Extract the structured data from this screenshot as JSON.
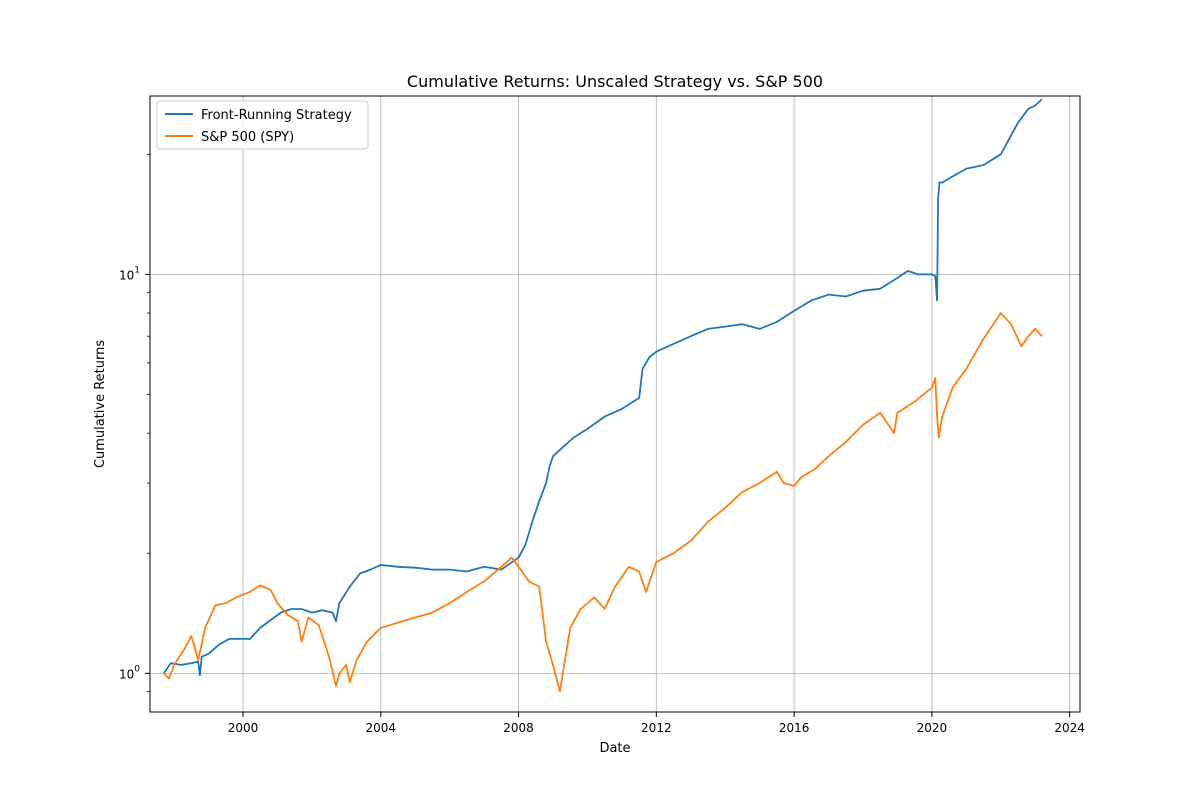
{
  "chart_data": {
    "type": "line",
    "title": "Cumulative Returns: Unscaled Strategy vs. S&P 500",
    "xlabel": "Date",
    "ylabel": "Cumulative Returns",
    "yscale": "log",
    "xlim": [
      1997.3,
      2024.3
    ],
    "ylim": [
      0.8,
      28
    ],
    "grid": true,
    "legend_position": "top-left",
    "x_ticks": [
      {
        "value": 2000,
        "label": "2000"
      },
      {
        "value": 2004,
        "label": "2004"
      },
      {
        "value": 2008,
        "label": "2008"
      },
      {
        "value": 2012,
        "label": "2012"
      },
      {
        "value": 2016,
        "label": "2016"
      },
      {
        "value": 2020,
        "label": "2020"
      },
      {
        "value": 2024,
        "label": "2024"
      }
    ],
    "y_ticks": [
      {
        "value": 1,
        "base": "10",
        "exp": "0"
      },
      {
        "value": 10,
        "base": "10",
        "exp": "1"
      }
    ],
    "y_minor_ticks": [
      0.9,
      2,
      3,
      4,
      5,
      6,
      7,
      8,
      9,
      20
    ],
    "series": [
      {
        "name": "Front-Running Strategy",
        "color": "#1f77b4",
        "x": [
          1997.7,
          1997.9,
          1998.2,
          1998.5,
          1998.7,
          1998.75,
          1998.8,
          1999.0,
          1999.3,
          1999.6,
          1999.9,
          2000.2,
          2000.5,
          2000.8,
          2001.1,
          2001.4,
          2001.7,
          2002.0,
          2002.3,
          2002.6,
          2002.7,
          2002.8,
          2003.1,
          2003.4,
          2003.7,
          2004.0,
          2004.5,
          2005.0,
          2005.5,
          2006.0,
          2006.5,
          2007.0,
          2007.5,
          2008.0,
          2008.2,
          2008.4,
          2008.6,
          2008.8,
          2008.9,
          2009.0,
          2009.3,
          2009.6,
          2010.0,
          2010.5,
          2011.0,
          2011.5,
          2011.6,
          2011.8,
          2012.0,
          2012.5,
          2013.0,
          2013.5,
          2014.0,
          2014.5,
          2015.0,
          2015.5,
          2016.0,
          2016.5,
          2017.0,
          2017.5,
          2018.0,
          2018.5,
          2019.0,
          2019.3,
          2019.6,
          2020.0,
          2020.1,
          2020.15,
          2020.18,
          2020.22,
          2020.3,
          2020.6,
          2021.0,
          2021.5,
          2022.0,
          2022.5,
          2022.8,
          2023.0,
          2023.2
        ],
        "values": [
          1.0,
          1.06,
          1.05,
          1.06,
          1.07,
          0.99,
          1.1,
          1.12,
          1.18,
          1.22,
          1.22,
          1.22,
          1.3,
          1.36,
          1.42,
          1.45,
          1.45,
          1.42,
          1.44,
          1.42,
          1.35,
          1.5,
          1.65,
          1.78,
          1.82,
          1.87,
          1.85,
          1.84,
          1.82,
          1.82,
          1.8,
          1.85,
          1.82,
          1.95,
          2.1,
          2.4,
          2.7,
          3.0,
          3.3,
          3.5,
          3.7,
          3.9,
          4.1,
          4.4,
          4.6,
          4.9,
          5.8,
          6.2,
          6.4,
          6.7,
          7.0,
          7.3,
          7.4,
          7.5,
          7.3,
          7.6,
          8.1,
          8.6,
          8.9,
          8.8,
          9.1,
          9.2,
          9.8,
          10.2,
          10.0,
          10.0,
          9.9,
          8.6,
          15.5,
          17.0,
          17.0,
          17.6,
          18.4,
          18.8,
          20.0,
          24.0,
          26.0,
          26.5,
          27.5
        ]
      },
      {
        "name": "S&P 500 (SPY)",
        "color": "#ff7f0e",
        "x": [
          1997.7,
          1997.85,
          1998.0,
          1998.3,
          1998.5,
          1998.7,
          1998.9,
          1999.2,
          1999.5,
          1999.8,
          2000.2,
          2000.5,
          2000.8,
          2001.0,
          2001.3,
          2001.6,
          2001.7,
          2001.9,
          2002.2,
          2002.5,
          2002.7,
          2002.8,
          2003.0,
          2003.1,
          2003.3,
          2003.6,
          2004.0,
          2004.5,
          2005.0,
          2005.5,
          2006.0,
          2006.5,
          2007.0,
          2007.5,
          2007.8,
          2008.0,
          2008.3,
          2008.6,
          2008.8,
          2009.0,
          2009.2,
          2009.5,
          2009.8,
          2010.2,
          2010.5,
          2010.8,
          2011.2,
          2011.5,
          2011.7,
          2012.0,
          2012.5,
          2013.0,
          2013.5,
          2014.0,
          2014.5,
          2015.0,
          2015.5,
          2015.7,
          2016.0,
          2016.2,
          2016.6,
          2017.0,
          2017.5,
          2018.0,
          2018.5,
          2018.9,
          2019.0,
          2019.5,
          2020.0,
          2020.1,
          2020.15,
          2020.2,
          2020.3,
          2020.6,
          2021.0,
          2021.5,
          2022.0,
          2022.3,
          2022.6,
          2022.8,
          2023.0,
          2023.2
        ],
        "values": [
          1.0,
          0.97,
          1.05,
          1.15,
          1.24,
          1.08,
          1.3,
          1.48,
          1.5,
          1.55,
          1.6,
          1.66,
          1.62,
          1.5,
          1.4,
          1.35,
          1.2,
          1.38,
          1.32,
          1.1,
          0.93,
          1.0,
          1.05,
          0.95,
          1.08,
          1.2,
          1.3,
          1.34,
          1.38,
          1.42,
          1.5,
          1.6,
          1.7,
          1.85,
          1.95,
          1.85,
          1.7,
          1.65,
          1.2,
          1.05,
          0.9,
          1.3,
          1.45,
          1.55,
          1.45,
          1.65,
          1.85,
          1.8,
          1.6,
          1.9,
          2.0,
          2.15,
          2.4,
          2.6,
          2.85,
          3.0,
          3.2,
          3.0,
          2.95,
          3.1,
          3.25,
          3.5,
          3.8,
          4.2,
          4.5,
          4.0,
          4.5,
          4.8,
          5.2,
          5.5,
          4.4,
          3.9,
          4.4,
          5.2,
          5.8,
          6.9,
          8.0,
          7.5,
          6.6,
          7.0,
          7.3,
          7.0
        ]
      }
    ]
  }
}
